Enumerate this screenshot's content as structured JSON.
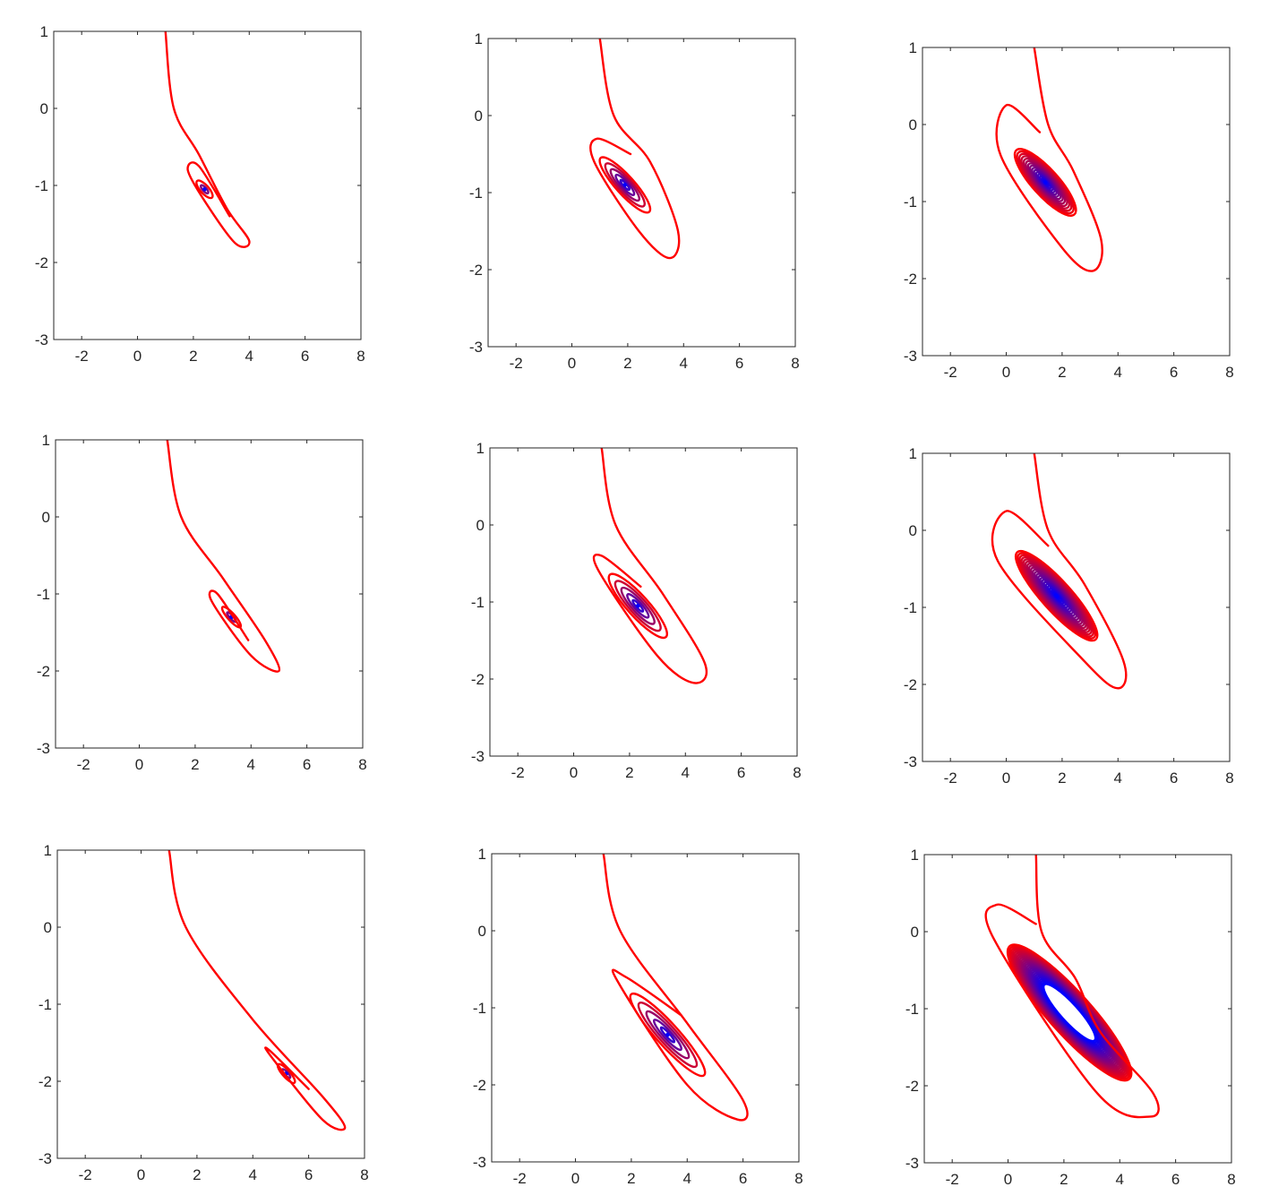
{
  "chart_data": [
    {
      "type": "line",
      "xlim": [
        -3,
        8
      ],
      "ylim": [
        -3,
        1
      ],
      "xticks": [
        -2,
        0,
        2,
        4,
        6,
        8
      ],
      "yticks": [
        -3,
        -2,
        -1,
        0,
        1
      ],
      "grid": false,
      "series": [
        {
          "values": [
            [
              1,
              1
            ],
            [
              1.3,
              0
            ],
            [
              2.2,
              -0.6
            ],
            [
              3.2,
              -1.3
            ],
            [
              4,
              -1.72
            ],
            [
              3.5,
              -1.75
            ],
            [
              2.4,
              -1.2
            ],
            [
              1.8,
              -0.8
            ],
            [
              2.2,
              -0.75
            ],
            [
              3.3,
              -1.4
            ]
          ]
        }
      ],
      "spiral": {
        "center": [
          2.4,
          -1.05
        ],
        "rings": 3,
        "outer": {
          "rx": 0.4,
          "ry": 0.15
        },
        "inner_hole": 0
      }
    },
    {
      "type": "line",
      "xlim": [
        -3,
        8
      ],
      "ylim": [
        -3,
        1
      ],
      "xticks": [
        -2,
        0,
        2,
        4,
        6,
        8
      ],
      "yticks": [
        -3,
        -2,
        -1,
        0,
        1
      ],
      "grid": false,
      "series": [
        {
          "values": [
            [
              1,
              1
            ],
            [
              1.5,
              0
            ],
            [
              2.8,
              -0.6
            ],
            [
              3.8,
              -1.5
            ],
            [
              3.5,
              -1.85
            ],
            [
              2.4,
              -1.5
            ],
            [
              0.8,
              -0.6
            ],
            [
              0.9,
              -0.3
            ],
            [
              2.1,
              -0.5
            ]
          ]
        }
      ],
      "spiral": {
        "center": [
          1.9,
          -0.9
        ],
        "rings": 6,
        "outer": {
          "rx": 1.3,
          "ry": 0.33
        },
        "inner_hole": 0
      }
    },
    {
      "type": "line",
      "xlim": [
        -3,
        8
      ],
      "ylim": [
        -3,
        1
      ],
      "xticks": [
        -2,
        0,
        2,
        4,
        6,
        8
      ],
      "yticks": [
        -3,
        -2,
        -1,
        0,
        1
      ],
      "grid": false,
      "series": [
        {
          "values": [
            [
              1,
              1
            ],
            [
              1.5,
              0
            ],
            [
              2.4,
              -0.6
            ],
            [
              3.4,
              -1.5
            ],
            [
              3.1,
              -1.9
            ],
            [
              2,
              -1.6
            ],
            [
              -0.2,
              -0.4
            ],
            [
              0,
              0.25
            ],
            [
              1.2,
              -0.1
            ]
          ]
        }
      ],
      "spiral": {
        "center": [
          1.4,
          -0.75
        ],
        "rings": 16,
        "outer": {
          "rx": 1.55,
          "ry": 0.47
        },
        "inner_hole": 0
      }
    },
    {
      "type": "line",
      "xlim": [
        -3,
        8
      ],
      "ylim": [
        -3,
        1
      ],
      "xticks": [
        -2,
        0,
        2,
        4,
        6,
        8
      ],
      "yticks": [
        -3,
        -2,
        -1,
        0,
        1
      ],
      "grid": false,
      "series": [
        {
          "values": [
            [
              1,
              1
            ],
            [
              1.5,
              0
            ],
            [
              3,
              -0.8
            ],
            [
              4.5,
              -1.6
            ],
            [
              5,
              -2
            ],
            [
              4,
              -1.8
            ],
            [
              2.6,
              -1.1
            ],
            [
              2.8,
              -1
            ],
            [
              3.9,
              -1.6
            ]
          ]
        }
      ],
      "spiral": {
        "center": [
          3.3,
          -1.3
        ],
        "rings": 3,
        "outer": {
          "rx": 0.48,
          "ry": 0.13
        },
        "inner_hole": 0
      }
    },
    {
      "type": "line",
      "xlim": [
        -3,
        8
      ],
      "ylim": [
        -3,
        1
      ],
      "xticks": [
        -2,
        0,
        2,
        4,
        6,
        8
      ],
      "yticks": [
        -3,
        -2,
        -1,
        0,
        1
      ],
      "grid": false,
      "series": [
        {
          "values": [
            [
              1,
              1
            ],
            [
              1.5,
              0
            ],
            [
              3.2,
              -0.9
            ],
            [
              4.7,
              -1.8
            ],
            [
              4.3,
              -2.05
            ],
            [
              3,
              -1.7
            ],
            [
              0.9,
              -0.6
            ],
            [
              1,
              -0.4
            ],
            [
              2.4,
              -0.8
            ]
          ]
        }
      ],
      "spiral": {
        "center": [
          2.3,
          -1.05
        ],
        "rings": 6,
        "outer": {
          "rx": 1.5,
          "ry": 0.38
        },
        "inner_hole": 0
      }
    },
    {
      "type": "line",
      "xlim": [
        -3,
        8
      ],
      "ylim": [
        -3,
        1
      ],
      "xticks": [
        -2,
        0,
        2,
        4,
        6,
        8
      ],
      "yticks": [
        -3,
        -2,
        -1,
        0,
        1
      ],
      "grid": false,
      "series": [
        {
          "values": [
            [
              1,
              1
            ],
            [
              1.5,
              0
            ],
            [
              2.8,
              -0.7
            ],
            [
              4.2,
              -1.7
            ],
            [
              4,
              -2.05
            ],
            [
              2.8,
              -1.7
            ],
            [
              -0.3,
              -0.4
            ],
            [
              0,
              0.25
            ],
            [
              1.5,
              -0.2
            ]
          ]
        }
      ],
      "spiral": {
        "center": [
          1.8,
          -0.85
        ],
        "rings": 22,
        "outer": {
          "rx": 2.1,
          "ry": 0.53
        },
        "inner_hole": 0.03
      }
    },
    {
      "type": "line",
      "xlim": [
        -3,
        8
      ],
      "ylim": [
        -3,
        1
      ],
      "xticks": [
        -2,
        0,
        2,
        4,
        6,
        8
      ],
      "yticks": [
        -3,
        -2,
        -1,
        0,
        1
      ],
      "grid": false,
      "series": [
        {
          "values": [
            [
              1,
              1
            ],
            [
              1.6,
              0
            ],
            [
              4,
              -1.2
            ],
            [
              6.5,
              -2.2
            ],
            [
              7.3,
              -2.6
            ],
            [
              6.5,
              -2.5
            ],
            [
              4.7,
              -1.7
            ],
            [
              4.6,
              -1.6
            ],
            [
              6,
              -2.1
            ]
          ]
        }
      ],
      "spiral": {
        "center": [
          5.2,
          -1.9
        ],
        "rings": 3,
        "outer": {
          "rx": 0.44,
          "ry": 0.13
        },
        "inner_hole": 0
      }
    },
    {
      "type": "line",
      "xlim": [
        -3,
        8
      ],
      "ylim": [
        -3,
        1
      ],
      "xticks": [
        -2,
        0,
        2,
        4,
        6,
        8
      ],
      "yticks": [
        -3,
        -2,
        -1,
        0,
        1
      ],
      "grid": false,
      "series": [
        {
          "values": [
            [
              1,
              1
            ],
            [
              1.6,
              0
            ],
            [
              4,
              -1.2
            ],
            [
              6,
              -2.2
            ],
            [
              5.8,
              -2.45
            ],
            [
              4,
              -2
            ],
            [
              1.5,
              -0.65
            ],
            [
              1.8,
              -0.6
            ],
            [
              3.8,
              -1.1
            ]
          ]
        }
      ],
      "spiral": {
        "center": [
          3.3,
          -1.35
        ],
        "rings": 6,
        "outer": {
          "rx": 1.95,
          "ry": 0.4
        },
        "inner_hole": 0
      }
    },
    {
      "type": "line",
      "xlim": [
        -3,
        8
      ],
      "ylim": [
        -3,
        1
      ],
      "xticks": [
        -2,
        0,
        2,
        4,
        6,
        8
      ],
      "yticks": [
        -3,
        -2,
        -1,
        0,
        1
      ],
      "grid": false,
      "series": [
        {
          "values": [
            [
              1,
              1
            ],
            [
              1.2,
              0
            ],
            [
              2.4,
              -0.6
            ],
            [
              3.3,
              -1.3
            ],
            [
              5.2,
              -2.1
            ],
            [
              5.1,
              -2.4
            ],
            [
              3.2,
              -2.1
            ],
            [
              -0.5,
              -0.1
            ],
            [
              -0.4,
              0.35
            ],
            [
              1,
              0.1
            ]
          ]
        }
      ],
      "spiral": {
        "center": [
          2.2,
          -1.05
        ],
        "rings": 26,
        "outer": {
          "rx": 3.2,
          "ry": 0.75
        },
        "inner_hole": 0.42
      }
    }
  ],
  "colors": {
    "outer": "#ff0000",
    "mid": "#800080",
    "inner": "#0000ff",
    "axis": "#262626"
  }
}
